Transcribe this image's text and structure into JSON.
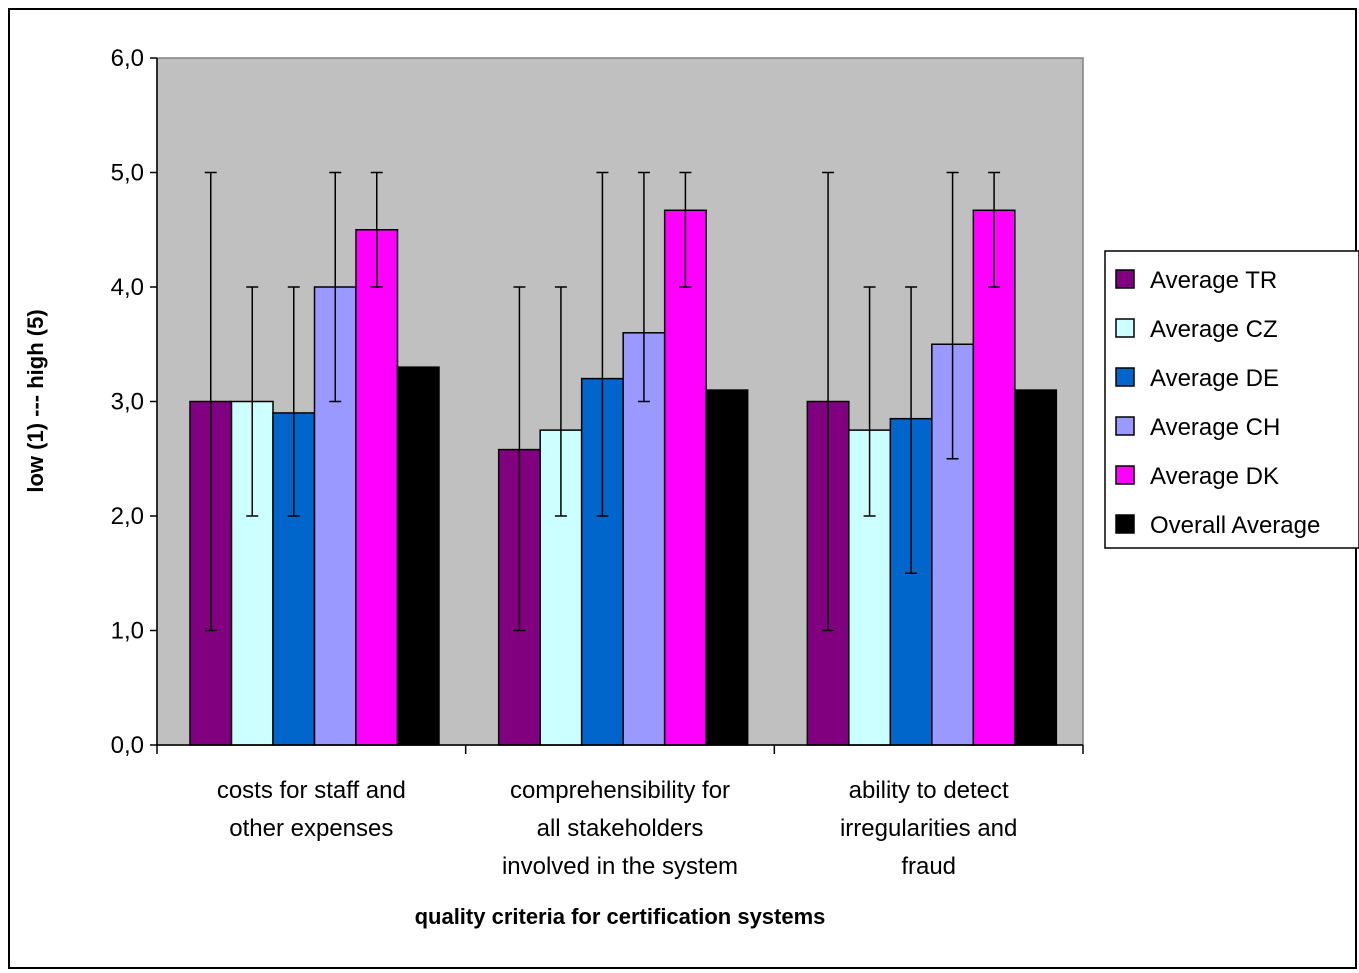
{
  "chart_data": {
    "type": "bar",
    "xlabel": "quality criteria for certification systems",
    "ylabel": "low (1) --- high (5)",
    "ylim": [
      0,
      6
    ],
    "yticks": [
      "0,0",
      "1,0",
      "2,0",
      "3,0",
      "4,0",
      "5,0",
      "6,0"
    ],
    "categories": [
      [
        "costs for staff and",
        "other expenses"
      ],
      [
        "comprehensibility for",
        "all stakeholders",
        "involved in the system"
      ],
      [
        "ability to detect",
        "irregularities and",
        "fraud"
      ]
    ],
    "series": [
      {
        "name": "Average TR",
        "color": "#800080",
        "values": [
          3.0,
          2.58,
          3.0
        ],
        "err_low": [
          1,
          1,
          1
        ],
        "err_high": [
          5,
          4,
          5
        ]
      },
      {
        "name": "Average CZ",
        "color": "#CCFFFF",
        "values": [
          3.0,
          2.75,
          2.75
        ],
        "err_low": [
          2,
          2,
          2
        ],
        "err_high": [
          4,
          4,
          4
        ]
      },
      {
        "name": "Average DE",
        "color": "#0066CC",
        "values": [
          2.9,
          3.2,
          2.85
        ],
        "err_low": [
          2,
          2,
          1.5
        ],
        "err_high": [
          4,
          5,
          4
        ]
      },
      {
        "name": "Average CH",
        "color": "#9999FF",
        "values": [
          4.0,
          3.6,
          3.5
        ],
        "err_low": [
          3,
          3,
          2.5
        ],
        "err_high": [
          5,
          5,
          5
        ]
      },
      {
        "name": "Average DK",
        "color": "#FF00FF",
        "values": [
          4.5,
          4.67,
          4.67
        ],
        "err_low": [
          4,
          4,
          4
        ],
        "err_high": [
          5,
          5,
          5
        ]
      },
      {
        "name": "Overall Average",
        "color": "#000000",
        "values": [
          3.3,
          3.1,
          3.1
        ]
      }
    ],
    "plot_background": "#C0C0C0",
    "legend_position": "right",
    "grid": false
  }
}
